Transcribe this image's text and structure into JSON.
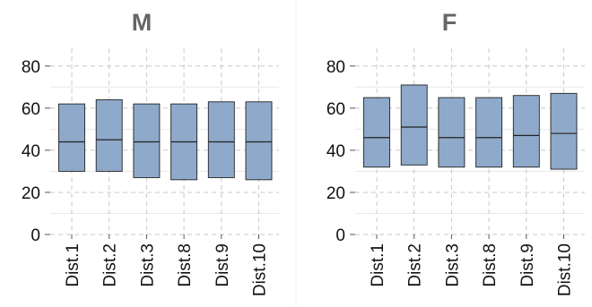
{
  "chart_data": [
    {
      "type": "box",
      "title": "M",
      "categories": [
        "Dist.1",
        "Dist.2",
        "Dist.3",
        "Dist.8",
        "Dist.9",
        "Dist.10"
      ],
      "boxes": [
        {
          "q1": 30,
          "median": 44,
          "q3": 62
        },
        {
          "q1": 30,
          "median": 45,
          "q3": 64
        },
        {
          "q1": 27,
          "median": 44,
          "q3": 62
        },
        {
          "q1": 26,
          "median": 44,
          "q3": 62
        },
        {
          "q1": 27,
          "median": 44,
          "q3": 63
        },
        {
          "q1": 26,
          "median": 44,
          "q3": 63
        }
      ],
      "ylim": [
        0,
        85
      ],
      "yticks": [
        0,
        20,
        40,
        60,
        80
      ],
      "grid": true,
      "xlabel": "",
      "ylabel": ""
    },
    {
      "type": "box",
      "title": "F",
      "categories": [
        "Dist.1",
        "Dist.2",
        "Dist.3",
        "Dist.8",
        "Dist.9",
        "Dist.10"
      ],
      "boxes": [
        {
          "q1": 32,
          "median": 46,
          "q3": 65
        },
        {
          "q1": 33,
          "median": 51,
          "q3": 71
        },
        {
          "q1": 32,
          "median": 46,
          "q3": 65
        },
        {
          "q1": 32,
          "median": 46,
          "q3": 65
        },
        {
          "q1": 32,
          "median": 47,
          "q3": 66
        },
        {
          "q1": 31,
          "median": 48,
          "q3": 67
        }
      ],
      "ylim": [
        0,
        85
      ],
      "yticks": [
        0,
        20,
        40,
        60,
        80
      ],
      "grid": true,
      "xlabel": "",
      "ylabel": ""
    }
  ],
  "colors": {
    "box_fill": "#8EA9CA",
    "box_stroke": "#222222",
    "grid_major": "#c8c8c8",
    "grid_minor": "#e8e8e8",
    "title": "#666666",
    "tick_label": "#111111"
  }
}
